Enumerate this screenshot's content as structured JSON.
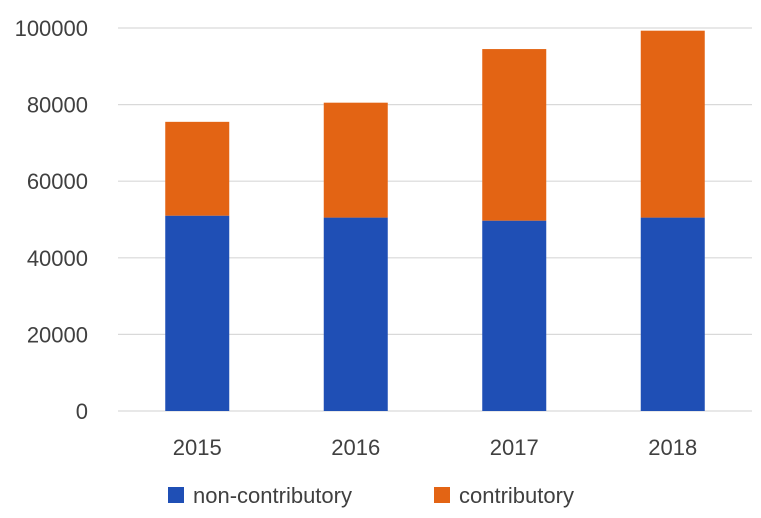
{
  "chart_data": {
    "type": "bar",
    "stacked": true,
    "categories": [
      "2015",
      "2016",
      "2017",
      "2018"
    ],
    "series": [
      {
        "name": "non-contributory",
        "values": [
          51000,
          50500,
          49700,
          50500
        ],
        "color": "#1f4fb5"
      },
      {
        "name": "contributory",
        "values": [
          24500,
          30000,
          44800,
          48800
        ],
        "color": "#e36414"
      }
    ],
    "y_ticks": [
      "0",
      "20000",
      "40000",
      "60000",
      "80000",
      "100000"
    ],
    "ylim": [
      0,
      100000
    ],
    "title": "",
    "xlabel": "",
    "ylabel": "",
    "grid": true,
    "legend_position": "bottom"
  }
}
